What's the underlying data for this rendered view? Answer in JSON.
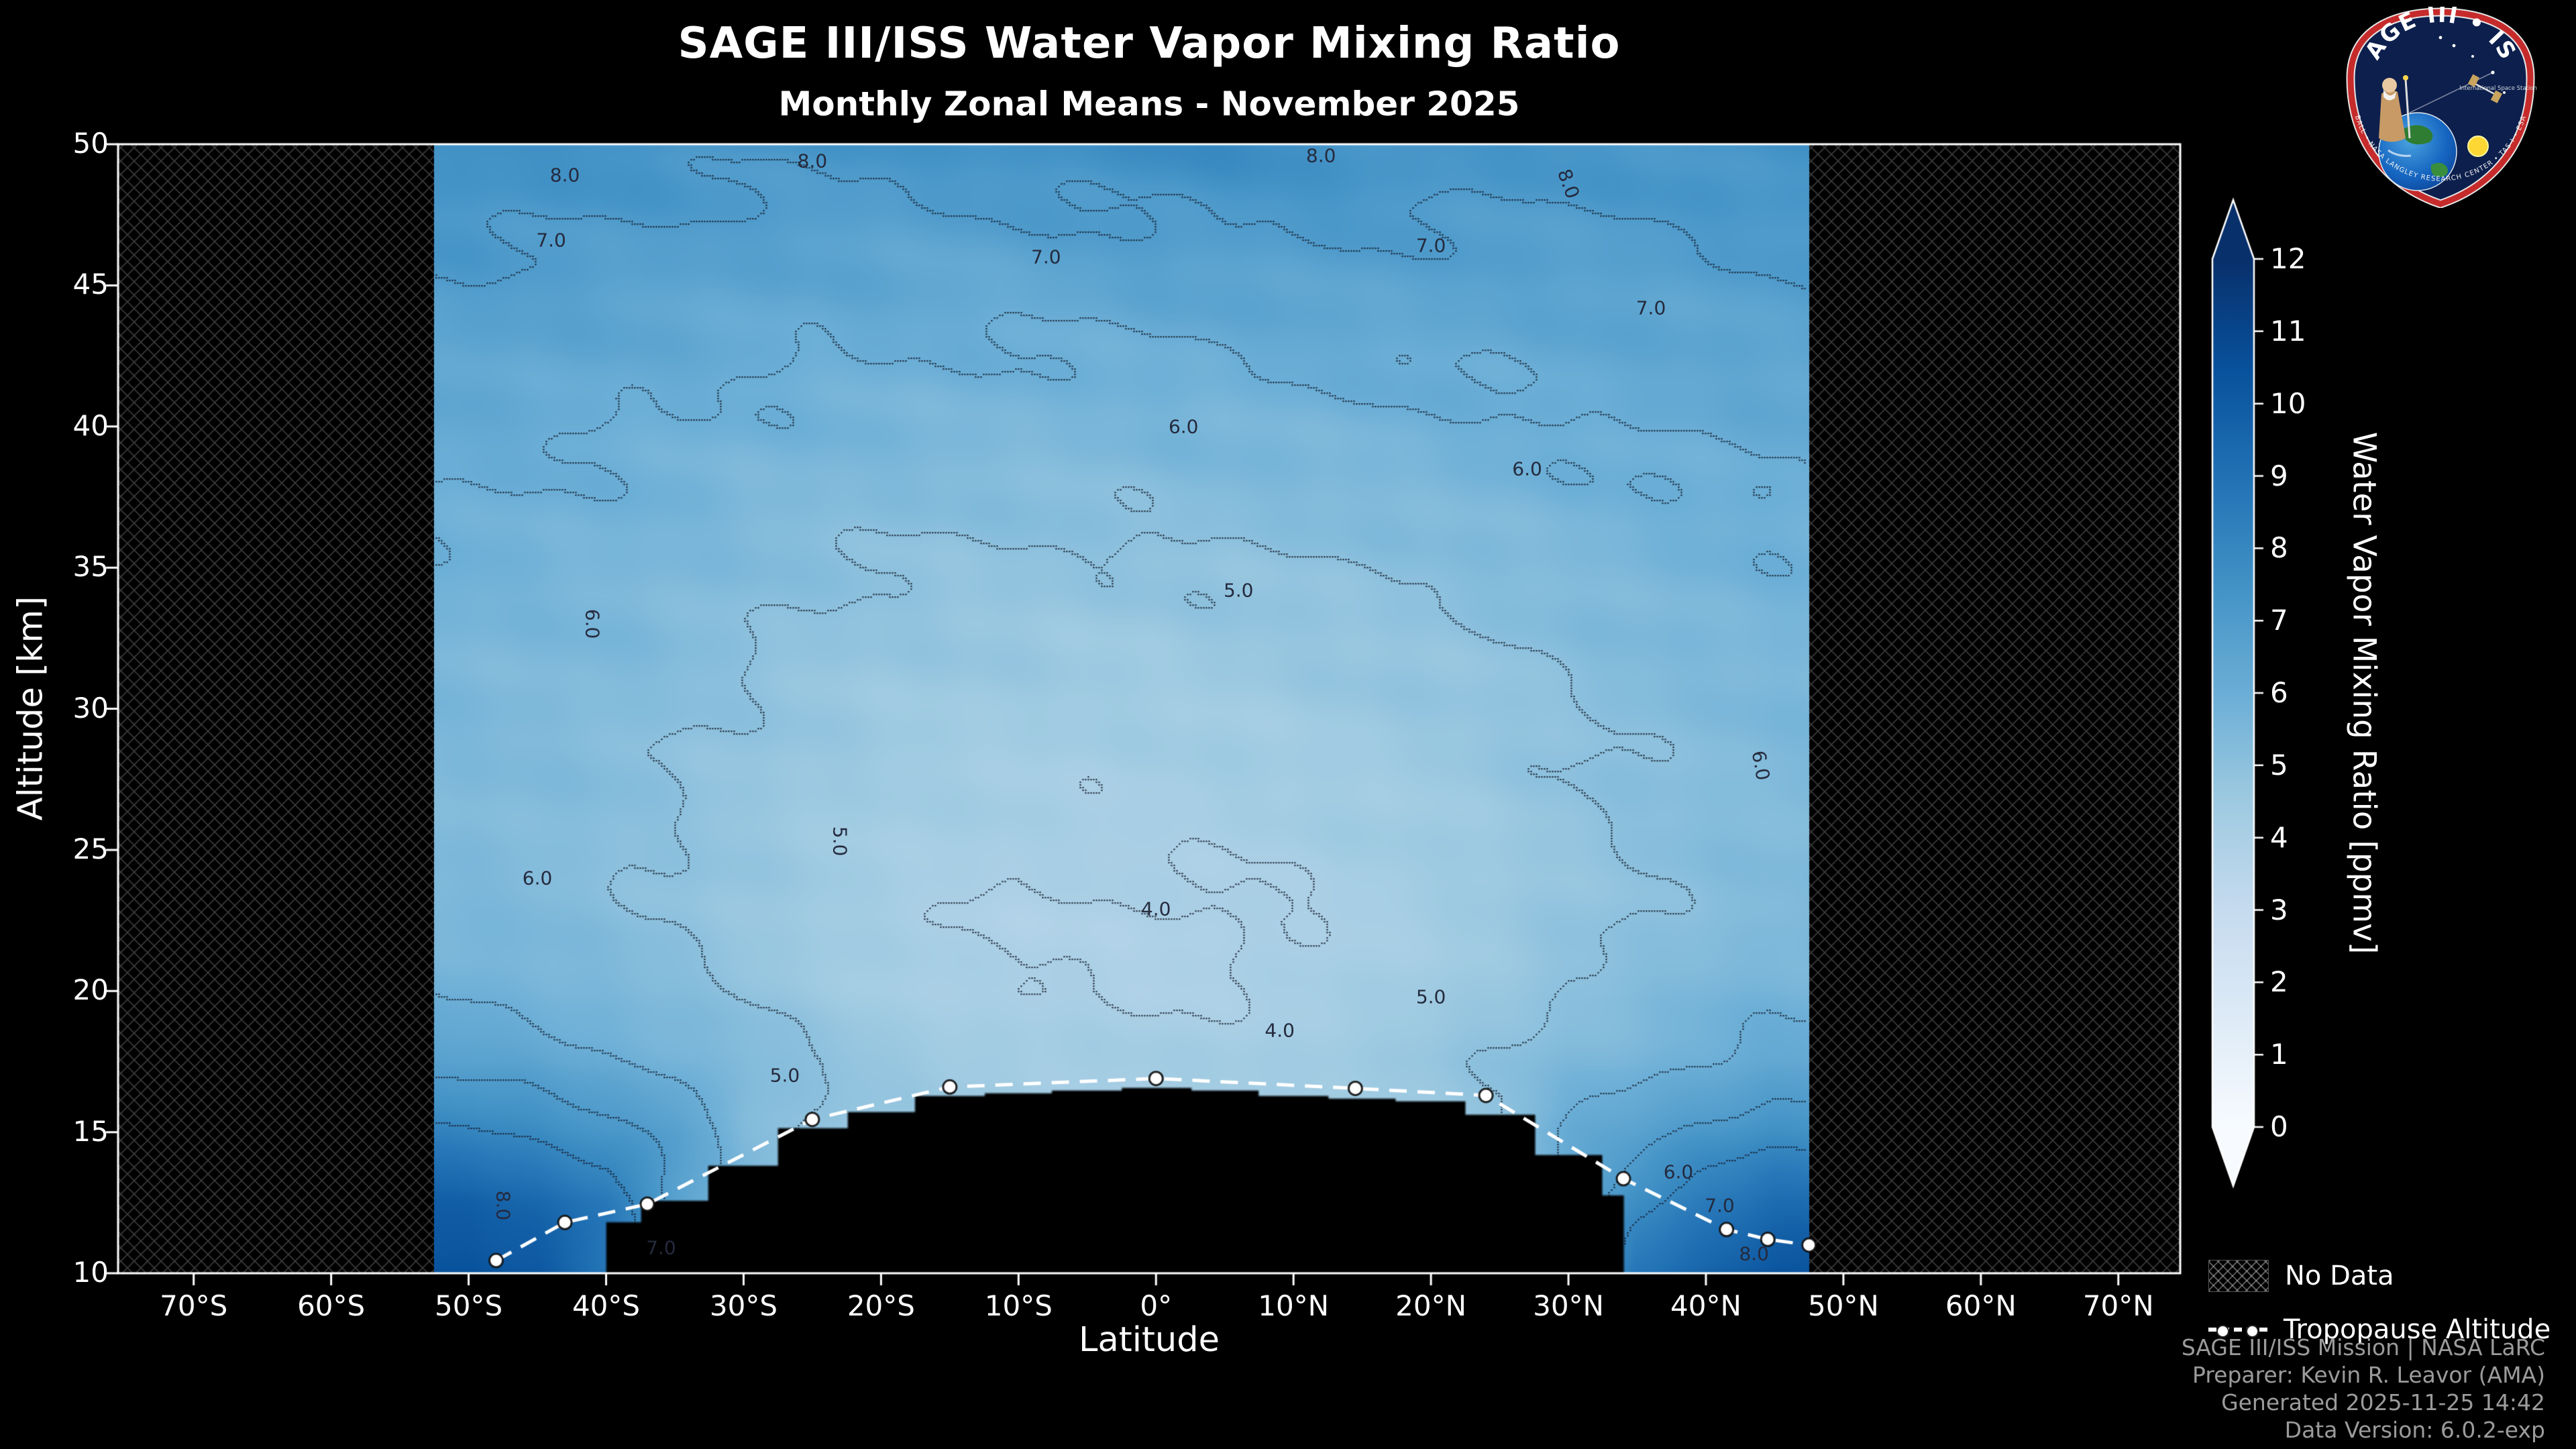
{
  "header": {
    "title": "SAGE III/ISS Water Vapor Mixing Ratio",
    "subtitle": "Monthly Zonal Means - November 2025"
  },
  "logo": {
    "arc_text": "SAGE III • ISS",
    "iss_caption": "International Space Station",
    "ring_text": "BALL • NASA LANGLEY RESEARCH CENTER • TAS-I • ESA"
  },
  "legend": {
    "no_data_label": "No Data",
    "tropopause_label": "Tropopause Altitude"
  },
  "footer": {
    "lines": [
      "SAGE III/ISS Mission | NASA LaRC",
      "Preparer: Kevin R. Leavor (AMA)",
      "Generated 2025-11-25 14:42",
      "Data Version: 6.0.2-exp"
    ]
  },
  "chart_data": {
    "type": "heatmap",
    "title": "SAGE III/ISS Water Vapor Mixing Ratio",
    "subtitle": "Monthly Zonal Means - November 2025",
    "xlabel": "Latitude",
    "ylabel": "Altitude [km]",
    "grid": false,
    "x_axis": {
      "label": "Latitude",
      "range": [
        -75.5,
        74.5
      ],
      "tick_values": [
        -70,
        -60,
        -50,
        -40,
        -30,
        -20,
        -10,
        0,
        10,
        20,
        30,
        40,
        50,
        60,
        70
      ],
      "tick_labels": [
        "70°S",
        "60°S",
        "50°S",
        "40°S",
        "30°S",
        "20°S",
        "10°S",
        "0°",
        "10°N",
        "20°N",
        "30°N",
        "40°N",
        "50°N",
        "60°N",
        "70°N"
      ]
    },
    "y_axis": {
      "label": "Altitude [km]",
      "range": [
        10,
        50
      ],
      "tick_values": [
        10,
        15,
        20,
        25,
        30,
        35,
        40,
        45,
        50
      ],
      "tick_labels": [
        "10",
        "15",
        "20",
        "25",
        "30",
        "35",
        "40",
        "45",
        "50"
      ]
    },
    "colorbar": {
      "label": "Water Vapor Mixing Ratio [ppmv]",
      "min": 0,
      "max": 12,
      "ticks": [
        0,
        1,
        2,
        3,
        4,
        5,
        6,
        7,
        8,
        9,
        10,
        11,
        12
      ],
      "extend": "both",
      "colormap_anchors": [
        "#f7fbff",
        "#deebf7",
        "#c6dbef",
        "#9ecae1",
        "#6baed6",
        "#4292c6",
        "#2171b5",
        "#08519c",
        "#08306b"
      ]
    },
    "data_extent": {
      "lat": [
        -52.5,
        47.5
      ],
      "alt": [
        10,
        50
      ]
    },
    "no_data_regions": [
      {
        "lat": [
          -75.5,
          -52.5
        ]
      },
      {
        "lat": [
          47.5,
          74.5
        ]
      }
    ],
    "mask_below_tropopause_lat_range": [
      -40,
      34
    ],
    "contour_levels": [
      4,
      5,
      6,
      7,
      8
    ],
    "contour_labels": [
      {
        "lat": -43,
        "alt": 48.9,
        "text": "8.0"
      },
      {
        "lat": -25,
        "alt": 49.4,
        "text": "8.0"
      },
      {
        "lat": 12,
        "alt": 49.6,
        "text": "8.0"
      },
      {
        "lat": 30,
        "alt": 48.6,
        "text": "8.0",
        "rot": 70
      },
      {
        "lat": -47.5,
        "alt": 12.4,
        "text": "8.0",
        "rot": 90
      },
      {
        "lat": 43.5,
        "alt": 10.7,
        "text": "8.0"
      },
      {
        "lat": -44,
        "alt": 46.6,
        "text": "7.0"
      },
      {
        "lat": -8,
        "alt": 46.0,
        "text": "7.0"
      },
      {
        "lat": 20,
        "alt": 46.4,
        "text": "7.0"
      },
      {
        "lat": 36,
        "alt": 44.2,
        "text": "7.0"
      },
      {
        "lat": -36,
        "alt": 10.9,
        "text": "7.0"
      },
      {
        "lat": 41,
        "alt": 12.4,
        "text": "7.0"
      },
      {
        "lat": -41,
        "alt": 33.0,
        "text": "6.0",
        "rot": 90
      },
      {
        "lat": -45,
        "alt": 24.0,
        "text": "6.0"
      },
      {
        "lat": 2,
        "alt": 40.0,
        "text": "6.0"
      },
      {
        "lat": 27,
        "alt": 38.5,
        "text": "6.0"
      },
      {
        "lat": 44,
        "alt": 28.0,
        "text": "6.0",
        "rot": 80
      },
      {
        "lat": 38,
        "alt": 13.6,
        "text": "6.0"
      },
      {
        "lat": -23,
        "alt": 25.3,
        "text": "5.0",
        "rot": 90
      },
      {
        "lat": 6,
        "alt": 34.2,
        "text": "5.0"
      },
      {
        "lat": 20,
        "alt": 19.8,
        "text": "5.0"
      },
      {
        "lat": -27,
        "alt": 17.0,
        "text": "5.0"
      },
      {
        "lat": 0,
        "alt": 22.9,
        "text": "4.0"
      },
      {
        "lat": 9,
        "alt": 18.6,
        "text": "4.0"
      }
    ],
    "tropopause": {
      "lat": [
        -48,
        -43,
        -37,
        -25,
        -15,
        0,
        14.5,
        24,
        34,
        41.5,
        44.5,
        47.5
      ],
      "alt": [
        10.45,
        11.8,
        12.45,
        15.45,
        16.6,
        16.9,
        16.55,
        16.3,
        13.35,
        11.55,
        11.2,
        11.0
      ]
    },
    "field": {
      "units": "ppmv",
      "lats": [
        -50,
        -45,
        -40,
        -35,
        -30,
        -25,
        -20,
        -15,
        -10,
        -5,
        0,
        5,
        10,
        15,
        20,
        25,
        30,
        35,
        40,
        45
      ],
      "alts": [
        10,
        12.5,
        15,
        17.5,
        20,
        22.5,
        25,
        27.5,
        30,
        32.5,
        35,
        37.5,
        40,
        42.5,
        45,
        47.5,
        50
      ],
      "values": [
        [
          10.5,
          9.8,
          8.2,
          6.6,
          5.9,
          5.5,
          5.4,
          5.4,
          5.5,
          5.6,
          5.8,
          6.0,
          6.2,
          6.5,
          6.9,
          7.3,
          7.6
        ],
        [
          10.2,
          9.4,
          7.8,
          6.4,
          5.7,
          5.4,
          5.3,
          5.3,
          5.4,
          5.5,
          5.7,
          5.9,
          6.1,
          6.4,
          6.8,
          7.2,
          7.5
        ],
        [
          null,
          8.8,
          7.2,
          6.1,
          5.5,
          5.2,
          5.1,
          5.2,
          5.3,
          5.5,
          5.6,
          5.8,
          6.0,
          6.3,
          6.7,
          7.1,
          7.5
        ],
        [
          null,
          null,
          6.8,
          5.8,
          5.2,
          5.0,
          4.9,
          5.0,
          5.1,
          5.3,
          5.5,
          5.7,
          5.9,
          6.2,
          6.6,
          7.0,
          7.4
        ],
        [
          null,
          null,
          null,
          5.4,
          4.9,
          4.7,
          4.7,
          4.8,
          4.9,
          5.1,
          5.3,
          5.5,
          5.8,
          6.1,
          6.5,
          6.9,
          7.3
        ],
        [
          null,
          null,
          null,
          5.0,
          4.6,
          4.4,
          4.5,
          4.6,
          4.7,
          4.9,
          5.1,
          5.4,
          5.7,
          6.0,
          6.4,
          6.9,
          7.3
        ],
        [
          null,
          null,
          null,
          4.7,
          4.3,
          4.2,
          4.3,
          4.4,
          4.6,
          4.8,
          5.0,
          5.3,
          5.6,
          6.0,
          6.4,
          6.8,
          7.3
        ],
        [
          null,
          null,
          null,
          4.5,
          4.1,
          4.0,
          4.2,
          4.3,
          4.5,
          4.7,
          4.9,
          5.2,
          5.6,
          5.9,
          6.3,
          6.8,
          7.4
        ],
        [
          null,
          null,
          null,
          4.4,
          4.0,
          3.9,
          4.1,
          4.3,
          4.4,
          4.7,
          4.9,
          5.2,
          5.5,
          5.9,
          6.3,
          6.9,
          7.5
        ],
        [
          null,
          null,
          null,
          4.3,
          4.0,
          3.9,
          4.1,
          4.2,
          4.4,
          4.6,
          4.9,
          5.2,
          5.5,
          5.9,
          6.4,
          7.0,
          7.6
        ],
        [
          null,
          null,
          null,
          4.3,
          3.9,
          3.9,
          4.1,
          4.2,
          4.4,
          4.6,
          4.9,
          5.2,
          5.6,
          6.0,
          6.5,
          7.1,
          7.7
        ],
        [
          null,
          null,
          null,
          4.3,
          4.0,
          3.9,
          4.1,
          4.3,
          4.4,
          4.7,
          4.9,
          5.3,
          5.6,
          6.0,
          6.5,
          7.1,
          7.7
        ],
        [
          null,
          null,
          null,
          4.4,
          4.1,
          4.0,
          4.2,
          4.3,
          4.5,
          4.7,
          5.0,
          5.3,
          5.7,
          6.1,
          6.6,
          7.1,
          7.6
        ],
        [
          null,
          null,
          null,
          4.5,
          4.2,
          4.1,
          4.3,
          4.4,
          4.6,
          4.8,
          5.0,
          5.4,
          5.7,
          6.1,
          6.6,
          7.1,
          7.5
        ],
        [
          null,
          null,
          null,
          4.7,
          4.4,
          4.3,
          4.4,
          4.5,
          4.7,
          4.9,
          5.1,
          5.5,
          5.8,
          6.2,
          6.6,
          7.0,
          7.4
        ],
        [
          null,
          null,
          null,
          5.0,
          4.7,
          4.5,
          4.6,
          4.7,
          4.8,
          5.0,
          5.3,
          5.6,
          5.9,
          6.2,
          6.6,
          7.0,
          7.4
        ],
        [
          null,
          null,
          6.2,
          5.4,
          5.0,
          4.8,
          4.8,
          4.9,
          5.0,
          5.2,
          5.4,
          5.7,
          6.0,
          6.3,
          6.6,
          7.0,
          7.3
        ],
        [
          8.8,
          7.8,
          6.6,
          5.7,
          5.2,
          5.0,
          5.0,
          5.1,
          5.2,
          5.4,
          5.6,
          5.8,
          6.1,
          6.3,
          6.7,
          7.0,
          7.3
        ],
        [
          9.6,
          8.6,
          7.2,
          6.0,
          5.5,
          5.2,
          5.2,
          5.2,
          5.3,
          5.5,
          5.7,
          5.9,
          6.1,
          6.4,
          6.7,
          7.1,
          7.4
        ],
        [
          10.4,
          9.2,
          7.6,
          6.3,
          5.7,
          5.4,
          5.3,
          5.4,
          5.5,
          5.6,
          5.8,
          6.0,
          6.2,
          6.5,
          6.8,
          7.2,
          7.5
        ]
      ]
    }
  }
}
